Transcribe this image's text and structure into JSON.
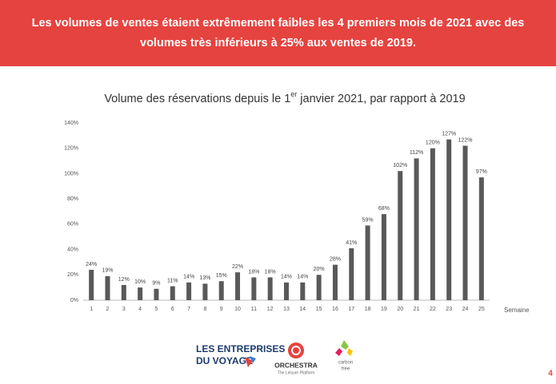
{
  "banner": {
    "text": "Les volumes de ventes étaient extrêmement faibles les 4 premiers mois de 2021 avec des volumes très inférieurs à 25% aux ventes de 2019."
  },
  "chart_data": {
    "type": "bar",
    "title": [
      "Volume des réservations depuis le 1",
      "er",
      " janvier 2021, par rapport à 2019"
    ],
    "xlabel": "Semaine",
    "categories": [
      "1",
      "2",
      "3",
      "4",
      "5",
      "6",
      "7",
      "8",
      "9",
      "10",
      "11",
      "12",
      "13",
      "14",
      "15",
      "16",
      "17",
      "18",
      "19",
      "20",
      "21",
      "22",
      "23",
      "24",
      "25"
    ],
    "values": [
      24,
      19,
      12,
      10,
      9,
      11,
      14,
      13,
      15,
      22,
      18,
      18,
      14,
      14,
      20,
      28,
      41,
      59,
      68,
      102,
      112,
      120,
      127,
      122,
      97
    ],
    "value_labels": [
      "24%",
      "19%",
      "12%",
      "10%",
      "9%",
      "11%",
      "14%",
      "13%",
      "15%",
      "22%",
      "18%",
      "18%",
      "14%",
      "14%",
      "20%",
      "28%",
      "41%",
      "59%",
      "68%",
      "102%",
      "112%",
      "120%",
      "127%",
      "122%",
      "97%"
    ],
    "color": "#595959",
    "ylim": [
      0,
      140
    ],
    "yticks": [
      {
        "value": 0,
        "label": "0%"
      },
      {
        "value": 20,
        "label": "20%"
      },
      {
        "value": 40,
        "label": "40%"
      },
      {
        "value": 60,
        "label": "60%"
      },
      {
        "value": 80,
        "label": "80%"
      },
      {
        "value": 100,
        "label": "100%"
      },
      {
        "value": 120,
        "label": "120%"
      },
      {
        "value": 140,
        "label": "140%"
      }
    ],
    "grid": false
  },
  "footer": {
    "entreprises": [
      "LES ENTREPRISES",
      "DU VOYAGE"
    ],
    "orchestra": "ORCHESTRA",
    "orchestra_tagline": "The Leisure Platform",
    "carbon": [
      "carbon",
      "free"
    ],
    "page_number": "4"
  }
}
